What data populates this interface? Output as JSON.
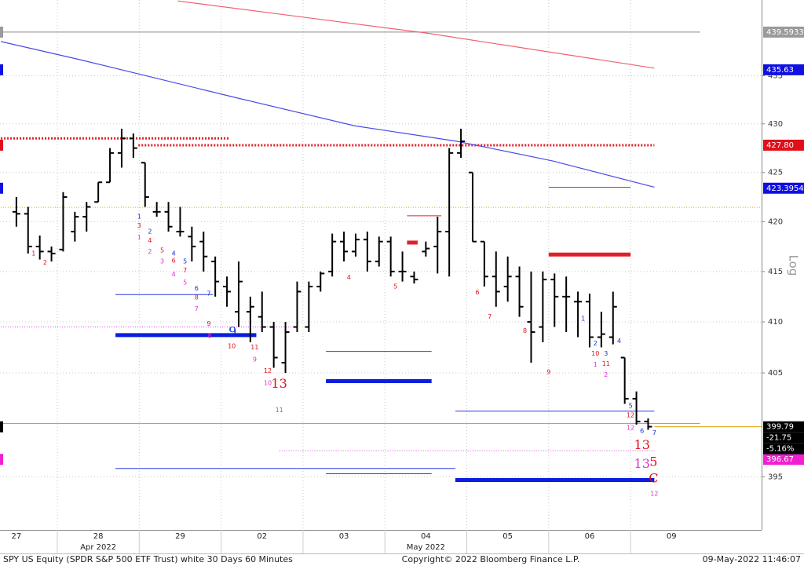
{
  "chart_data": {
    "type": "ohlc",
    "title": "SPY US Equity (SPDR S&P 500 ETF Trust) white 30 Days 60 Minutes",
    "copyright": "Copyright© 2022 Bloomberg Finance L.P.",
    "timestamp": "09-May-2022 11:46:07",
    "y_label": "Log",
    "log_scale": true,
    "grid": true,
    "categories": [
      "27",
      "28",
      "29",
      "02",
      "03",
      "04",
      "05",
      "06",
      "09"
    ],
    "category_sublabels": [
      null,
      "Apr 2022",
      null,
      null,
      null,
      "May 2022",
      null,
      null,
      null
    ],
    "bar_color": "#000000",
    "bars": [
      [
        [
          421,
          422.5,
          419.5,
          420.8
        ],
        [
          420.8,
          421.5,
          416.8,
          417.5
        ],
        [
          417.5,
          418.6,
          416.2,
          417.0
        ],
        [
          417.0,
          417.5,
          416.0,
          416.8
        ]
      ],
      [
        [
          417.2,
          423,
          417,
          422.5
        ],
        [
          419,
          421,
          418,
          420.5
        ],
        [
          420.5,
          422,
          419,
          421.5
        ],
        [
          422,
          424,
          422,
          424
        ],
        [
          424,
          427.5,
          424,
          427
        ],
        [
          427,
          429.5,
          425.5,
          428.5
        ],
        [
          428.5,
          429,
          426.5,
          427.5
        ]
      ],
      [
        [
          426,
          426,
          421.5,
          422.5
        ],
        [
          421,
          422,
          420.5,
          421
        ],
        [
          421,
          422,
          419,
          419.5
        ],
        [
          419,
          421.5,
          418.5,
          419
        ],
        [
          418.5,
          419.5,
          416,
          417.5
        ],
        [
          418,
          419,
          415,
          416.5
        ],
        [
          416,
          416.5,
          412.5,
          414
        ]
      ],
      [
        [
          413.5,
          414.5,
          411.5,
          413
        ],
        [
          411,
          416,
          409.5,
          414
        ],
        [
          411,
          412.5,
          408,
          411.5
        ],
        [
          410.5,
          413,
          409,
          409.5
        ],
        [
          409.5,
          410,
          405.5,
          406.5
        ],
        [
          406,
          410,
          405,
          409
        ],
        [
          409.5,
          414,
          409,
          413
        ]
      ],
      [
        [
          409.5,
          414,
          409,
          413.5
        ],
        [
          413.5,
          415,
          413,
          414.8
        ],
        [
          415,
          418.8,
          414.5,
          418
        ],
        [
          418,
          419,
          416,
          417
        ],
        [
          417,
          418.8,
          416.5,
          418.2
        ],
        [
          418.2,
          419,
          415,
          416
        ],
        [
          416,
          418.5,
          415.5,
          418
        ]
      ],
      [
        [
          418,
          418.5,
          414.5,
          415
        ],
        [
          415,
          417,
          414,
          415
        ],
        [
          414.5,
          415,
          413.8,
          414.2
        ],
        [
          417,
          418,
          416.5,
          417.3
        ],
        [
          417.5,
          420.5,
          414.8,
          419
        ],
        [
          419,
          427.5,
          414.5,
          427
        ],
        [
          427,
          429.5,
          426.5,
          428.2
        ]
      ],
      [
        [
          425,
          425,
          418,
          418
        ],
        [
          418,
          418,
          413.5,
          414.5
        ],
        [
          414.5,
          417,
          411.5,
          413
        ],
        [
          413.5,
          416.5,
          412,
          414.5
        ],
        [
          414.5,
          415.5,
          410.5,
          411.5
        ],
        [
          410,
          415,
          406,
          409
        ],
        [
          409.5,
          415,
          408,
          414.2
        ]
      ],
      [
        [
          414.2,
          414.8,
          409.5,
          412.5
        ],
        [
          412.5,
          414.5,
          409,
          412.5
        ],
        [
          412,
          413,
          408.5,
          412
        ],
        [
          412,
          412.8,
          407.5,
          408.5
        ],
        [
          408.5,
          411,
          407.5,
          408.8
        ],
        [
          408.5,
          413,
          407.8,
          411.5
        ],
        [
          406.5,
          406.5,
          402,
          402.5
        ]
      ],
      [
        [
          402.5,
          403.2,
          400,
          400.3
        ],
        [
          400.3,
          400.6,
          399.5,
          399.8
        ]
      ]
    ],
    "xlim": [
      0.3,
      9.6
    ],
    "ylim": [
      390,
      443
    ],
    "yticks": [
      395,
      405,
      410,
      415,
      420,
      425,
      430,
      435
    ],
    "lines": [
      {
        "color": "#f06070",
        "x": [
          2.47,
          5.5,
          8.29
        ],
        "values": [
          442.9,
          439.5,
          435.8
        ]
      },
      {
        "color": "#4a4ae8",
        "x": [
          0.31,
          1.27,
          3.19,
          4.63,
          5.88,
          7.04,
          8.29
        ],
        "values": [
          438.6,
          436.7,
          432.7,
          429.8,
          428.2,
          426.2,
          423.5
        ]
      }
    ],
    "levels": [
      {
        "value": 439.5933,
        "x": [
          0.31,
          8.85
        ],
        "color": "#888888",
        "width": 1,
        "dotted": false
      },
      {
        "value": 421.45,
        "x": [
          0.31,
          9.6
        ],
        "color": "#d4b400",
        "width": 1,
        "dotted": true
      },
      {
        "value": 428.5,
        "x": [
          0.31,
          3.1
        ],
        "color": "#e0202a",
        "width": 3,
        "dotted": true
      },
      {
        "value": 427.8,
        "x": [
          1.99,
          8.29
        ],
        "color": "#e0202a",
        "width": 3,
        "dotted": true
      },
      {
        "value": 420.6,
        "x": [
          5.27,
          5.69
        ],
        "color": "#e0202a",
        "width": 1,
        "dotted": false
      },
      {
        "value": 417.9,
        "x": [
          5.27,
          5.4
        ],
        "color": "#e0202a",
        "width": 5,
        "dotted": false
      },
      {
        "value": 423.5,
        "x": [
          7.0,
          8.0
        ],
        "color": "#e0202a",
        "width": 1,
        "dotted": false
      },
      {
        "value": 416.7,
        "x": [
          7.0,
          8.0
        ],
        "color": "#e0202a",
        "width": 5,
        "dotted": false
      },
      {
        "value": 412.7,
        "x": [
          1.71,
          2.9
        ],
        "color": "#2a3ae0",
        "width": 1,
        "dotted": false
      },
      {
        "value": 408.7,
        "x": [
          1.71,
          3.43
        ],
        "color": "#0a1ee0",
        "width": 5,
        "dotted": false
      },
      {
        "value": 409.5,
        "x": [
          0.31,
          3.87
        ],
        "color": "#e040e0",
        "width": 1,
        "dotted": true
      },
      {
        "value": 407.1,
        "x": [
          4.28,
          5.57
        ],
        "color": "#2a3ae0",
        "width": 1,
        "dotted": false
      },
      {
        "value": 404.2,
        "x": [
          4.28,
          5.57
        ],
        "color": "#0a1ee0",
        "width": 5,
        "dotted": false
      },
      {
        "value": 401.3,
        "x": [
          5.86,
          8.29
        ],
        "color": "#2a3ae0",
        "width": 1,
        "dotted": false
      },
      {
        "value": 400.1,
        "x": [
          0.31,
          8.85
        ],
        "color": "#60d060",
        "width": 1,
        "dotted": false
      },
      {
        "value": 399.79,
        "x": [
          8.29,
          9.6
        ],
        "color": "#e0a000",
        "width": 1,
        "dotted": false
      },
      {
        "value": 397.5,
        "x": [
          3.71,
          8.29
        ],
        "color": "#e040e0",
        "width": 1,
        "dotted": true
      },
      {
        "value": 395.8,
        "x": [
          1.71,
          5.86
        ],
        "color": "#2a3ae0",
        "width": 1,
        "dotted": false
      },
      {
        "value": 395.3,
        "x": [
          4.28,
          5.57
        ],
        "color": "#2a3ae0",
        "width": 1,
        "dotted": false
      },
      {
        "value": 394.7,
        "x": [
          5.86,
          8.29
        ],
        "color": "#0a1ee0",
        "width": 5,
        "dotted": false
      }
    ],
    "tags": [
      {
        "value": 439.5933,
        "label": "439.5933",
        "color": "#9a9a9a",
        "text_color": "#ffffff"
      },
      {
        "value": 435.63,
        "label": "435.63",
        "color": "#1010e0",
        "text_color": "#ffffff"
      },
      {
        "value": 427.8,
        "label": "427.80",
        "color": "#e0101a",
        "text_color": "#ffffff"
      },
      {
        "value": 423.3954,
        "label": "423.3954",
        "color": "#1010e0",
        "text_color": "#ffffff"
      },
      {
        "value": 399.79,
        "label": "399.79",
        "color": "#000000",
        "text_color": "#ffffff"
      },
      {
        "value": 396.67,
        "label": "396.67",
        "color": "#f020d0",
        "text_color": "#ffffff"
      }
    ],
    "change": {
      "values": [
        -21.75,
        -5.16
      ],
      "value_labels": [
        "-21.75",
        "-5.16%"
      ]
    },
    "annotations": [
      {
        "label": "1",
        "x": 0.71,
        "value": 416.8,
        "color": "#e0101a",
        "big": false
      },
      {
        "label": "2",
        "x": 0.85,
        "value": 415.9,
        "color": "#e0101a",
        "big": false
      },
      {
        "label": "1",
        "x": 2.0,
        "value": 420.5,
        "color": "#1030d0",
        "big": false
      },
      {
        "label": "2",
        "x": 2.13,
        "value": 419.0,
        "color": "#1030d0",
        "big": false
      },
      {
        "label": "3",
        "x": 2.0,
        "value": 419.6,
        "color": "#e0101a",
        "big": false
      },
      {
        "label": "4",
        "x": 2.13,
        "value": 418.1,
        "color": "#e0101a",
        "big": false
      },
      {
        "label": "5",
        "x": 2.28,
        "value": 417.1,
        "color": "#e0101a",
        "big": false
      },
      {
        "label": "4",
        "x": 2.42,
        "value": 416.8,
        "color": "#1030d0",
        "big": false
      },
      {
        "label": "6",
        "x": 2.42,
        "value": 416.1,
        "color": "#e0101a",
        "big": false
      },
      {
        "label": "5",
        "x": 2.56,
        "value": 416.0,
        "color": "#1030d0",
        "big": false
      },
      {
        "label": "7",
        "x": 2.56,
        "value": 415.1,
        "color": "#e0101a",
        "big": false
      },
      {
        "label": "6",
        "x": 2.7,
        "value": 413.3,
        "color": "#1030d0",
        "big": false
      },
      {
        "label": "8",
        "x": 2.7,
        "value": 412.4,
        "color": "#e0101a",
        "big": false
      },
      {
        "label": "7",
        "x": 2.85,
        "value": 412.8,
        "color": "#1030d0",
        "big": false
      },
      {
        "label": "9",
        "x": 2.85,
        "value": 409.8,
        "color": "#e0101a",
        "big": false
      },
      {
        "label": "1",
        "x": 2.0,
        "value": 418.4,
        "color": "#e030d0",
        "big": false
      },
      {
        "label": "2",
        "x": 2.13,
        "value": 417.0,
        "color": "#e030d0",
        "big": false
      },
      {
        "label": "3",
        "x": 2.28,
        "value": 416.0,
        "color": "#e030d0",
        "big": false
      },
      {
        "label": "4",
        "x": 2.42,
        "value": 414.7,
        "color": "#e030d0",
        "big": false
      },
      {
        "label": "5",
        "x": 2.56,
        "value": 413.9,
        "color": "#e030d0",
        "big": false
      },
      {
        "label": "7",
        "x": 2.7,
        "value": 411.3,
        "color": "#e030d0",
        "big": false
      },
      {
        "label": "8",
        "x": 2.86,
        "value": 408.6,
        "color": "#e030d0",
        "big": false
      },
      {
        "label": "9",
        "x": 3.14,
        "value": 409.0,
        "color": "#1030d0",
        "big": true
      },
      {
        "label": "10",
        "x": 3.13,
        "value": 407.6,
        "color": "#e0101a",
        "big": false
      },
      {
        "label": "11",
        "x": 3.41,
        "value": 407.5,
        "color": "#e0101a",
        "big": false
      },
      {
        "label": "9",
        "x": 3.41,
        "value": 406.3,
        "color": "#e030d0",
        "big": false
      },
      {
        "label": "12",
        "x": 3.57,
        "value": 405.2,
        "color": "#e0101a",
        "big": false
      },
      {
        "label": "10",
        "x": 3.57,
        "value": 404.0,
        "color": "#e030d0",
        "big": false
      },
      {
        "label": "13",
        "x": 3.71,
        "value": 403.9,
        "color": "#e0101a",
        "big": true
      },
      {
        "label": "11",
        "x": 3.71,
        "value": 401.4,
        "color": "#e030d0",
        "big": false
      },
      {
        "label": "4",
        "x": 4.56,
        "value": 414.4,
        "color": "#e0101a",
        "big": false
      },
      {
        "label": "5",
        "x": 5.13,
        "value": 413.5,
        "color": "#e0101a",
        "big": false
      },
      {
        "label": "6",
        "x": 6.13,
        "value": 412.9,
        "color": "#e0101a",
        "big": false
      },
      {
        "label": "7",
        "x": 6.28,
        "value": 410.5,
        "color": "#e0101a",
        "big": false
      },
      {
        "label": "8",
        "x": 6.71,
        "value": 409.1,
        "color": "#e0101a",
        "big": false
      },
      {
        "label": "9",
        "x": 7.0,
        "value": 405.1,
        "color": "#e0101a",
        "big": false
      },
      {
        "label": "1",
        "x": 7.42,
        "value": 410.3,
        "color": "#1030d0",
        "big": false
      },
      {
        "label": "2",
        "x": 7.57,
        "value": 407.9,
        "color": "#1030d0",
        "big": false
      },
      {
        "label": "3",
        "x": 7.7,
        "value": 406.9,
        "color": "#1030d0",
        "big": false
      },
      {
        "label": "4",
        "x": 7.86,
        "value": 408.1,
        "color": "#1030d0",
        "big": false
      },
      {
        "label": "10",
        "x": 7.57,
        "value": 406.9,
        "color": "#e0101a",
        "big": false
      },
      {
        "label": "11",
        "x": 7.7,
        "value": 405.9,
        "color": "#e0101a",
        "big": false
      },
      {
        "label": "1",
        "x": 7.57,
        "value": 405.8,
        "color": "#e030d0",
        "big": false
      },
      {
        "label": "2",
        "x": 7.7,
        "value": 404.8,
        "color": "#e030d0",
        "big": false
      },
      {
        "label": "5",
        "x": 8.0,
        "value": 401.8,
        "color": "#1030d0",
        "big": false
      },
      {
        "label": "12",
        "x": 8.0,
        "value": 400.9,
        "color": "#e0101a",
        "big": false
      },
      {
        "label": "12",
        "x": 8.0,
        "value": 399.7,
        "color": "#e030d0",
        "big": false
      },
      {
        "label": "6",
        "x": 8.14,
        "value": 399.4,
        "color": "#1030d0",
        "big": false
      },
      {
        "label": "7",
        "x": 8.29,
        "value": 399.2,
        "color": "#1030d0",
        "big": false
      },
      {
        "label": "13",
        "x": 8.14,
        "value": 398.0,
        "color": "#e0101a",
        "big": true
      },
      {
        "label": "13",
        "x": 8.14,
        "value": 396.2,
        "color": "#e030d0",
        "big": true
      },
      {
        "label": "5",
        "x": 8.28,
        "value": 396.4,
        "color": "#e0101a",
        "big": true
      },
      {
        "label": "C",
        "x": 8.28,
        "value": 394.8,
        "color": "#e0101a",
        "big": true
      },
      {
        "label": "12",
        "x": 8.29,
        "value": 393.4,
        "color": "#e030d0",
        "big": false
      }
    ]
  }
}
